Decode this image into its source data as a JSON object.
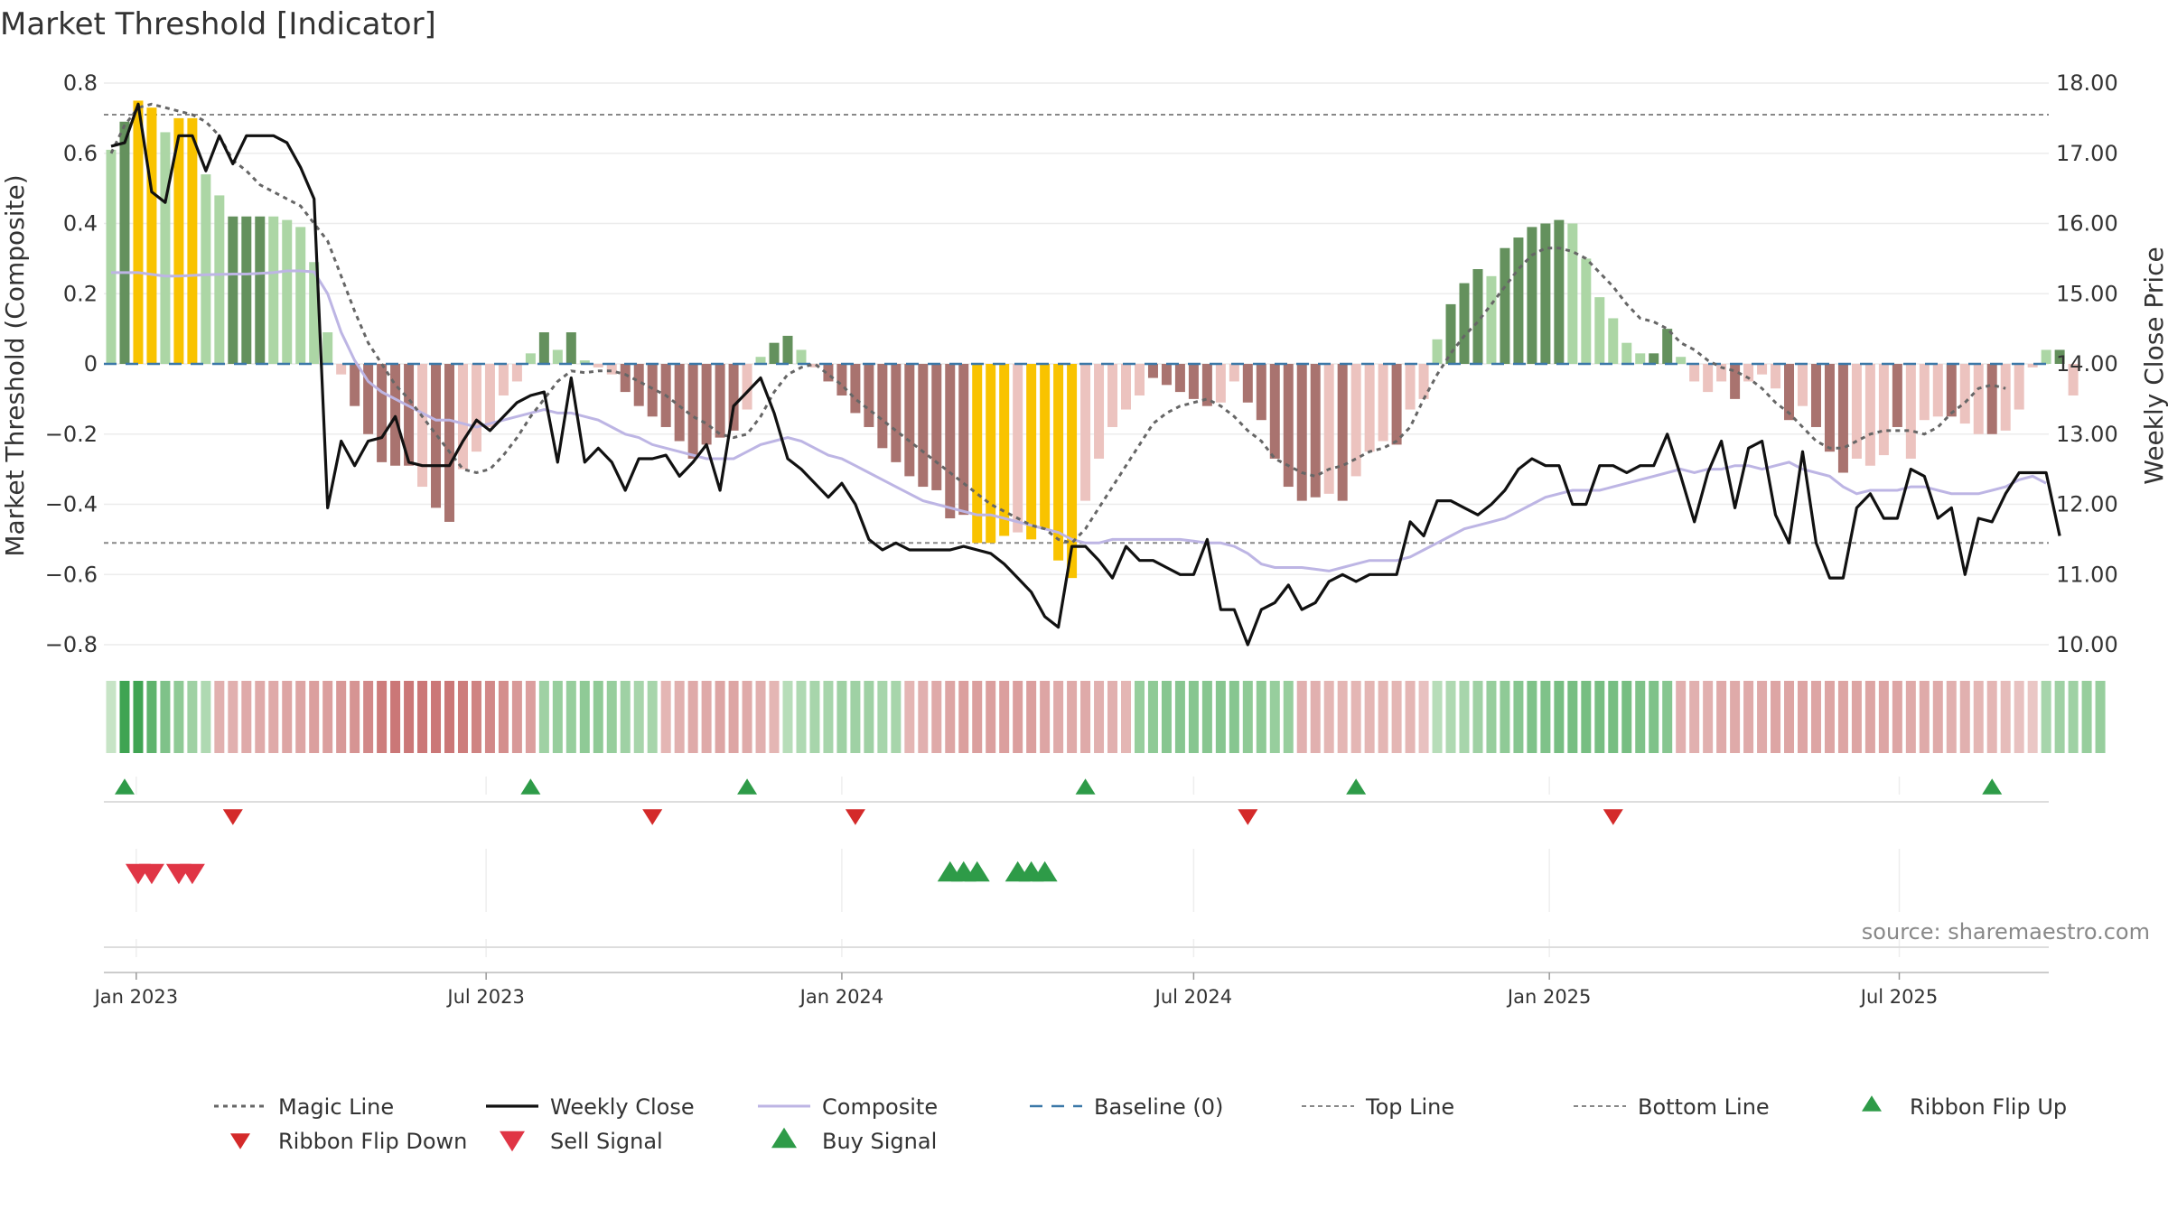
{
  "chart_data": {
    "type": "bar",
    "title": "Market Threshold [Indicator]",
    "source": "source: sharemaestro.com",
    "ylabel_left": "Market Threshold (Composite)",
    "ylabel_right": "Weekly Close Price",
    "ylim_left": [
      -0.8,
      0.8
    ],
    "ylim_right": [
      10.0,
      18.0
    ],
    "yticks_left": [
      "0.8",
      "0.6",
      "0.4",
      "0.2",
      "0",
      "−0.2",
      "−0.4",
      "−0.6",
      "−0.8"
    ],
    "yticks_right": [
      "18.00",
      "17.00",
      "16.00",
      "15.00",
      "14.00",
      "13.00",
      "12.00",
      "11.00",
      "10.00"
    ],
    "x_ticks": [
      "Jan 2023",
      "Jul 2023",
      "Jan 2024",
      "Jul 2024",
      "Jan 2025",
      "Jul 2025"
    ],
    "x_start": "2022-12-19",
    "x_step_days": 7,
    "top_line": 0.71,
    "bottom_line": -0.51,
    "baseline": 0,
    "colors": {
      "pos_light": "#acd6a5",
      "pos_dark": "#64915d",
      "neg_light": "#ecc3bf",
      "neg_dark": "#a9736f",
      "extreme": "#f9c300",
      "magic": "#666666",
      "close": "#111111",
      "composite": "#bdb5e4",
      "baseline": "#3b78a8",
      "threshold_lines": "#888888",
      "ribbon_up": "#2e9b48",
      "ribbon_down": "#d42a2a",
      "sell": "#e03545",
      "buy": "#2e9b48"
    },
    "bars": [
      0.61,
      0.69,
      0.75,
      0.73,
      0.66,
      0.7,
      0.7,
      0.54,
      0.48,
      0.42,
      0.42,
      0.42,
      0.42,
      0.41,
      0.39,
      0.29,
      0.09,
      -0.03,
      -0.12,
      -0.2,
      -0.28,
      -0.29,
      -0.29,
      -0.35,
      -0.41,
      -0.45,
      -0.3,
      -0.25,
      -0.18,
      -0.09,
      -0.05,
      0.03,
      0.09,
      0.04,
      0.09,
      0.01,
      -0.01,
      -0.03,
      -0.08,
      -0.12,
      -0.15,
      -0.18,
      -0.22,
      -0.27,
      -0.23,
      -0.21,
      -0.19,
      -0.13,
      0.02,
      0.06,
      0.08,
      0.04,
      -0.01,
      -0.05,
      -0.09,
      -0.14,
      -0.18,
      -0.24,
      -0.28,
      -0.32,
      -0.35,
      -0.36,
      -0.44,
      -0.43,
      -0.51,
      -0.51,
      -0.49,
      -0.48,
      -0.5,
      -0.47,
      -0.56,
      -0.61,
      -0.39,
      -0.27,
      -0.18,
      -0.13,
      -0.09,
      -0.04,
      -0.06,
      -0.08,
      -0.1,
      -0.12,
      -0.11,
      -0.05,
      -0.11,
      -0.16,
      -0.27,
      -0.35,
      -0.39,
      -0.38,
      -0.37,
      -0.39,
      -0.32,
      -0.25,
      -0.22,
      -0.23,
      -0.13,
      -0.1,
      0.07,
      0.17,
      0.23,
      0.27,
      0.25,
      0.33,
      0.36,
      0.39,
      0.4,
      0.41,
      0.4,
      0.3,
      0.19,
      0.13,
      0.06,
      0.03,
      0.03,
      0.1,
      0.02,
      -0.05,
      -0.08,
      -0.05,
      -0.1,
      -0.05,
      -0.03,
      -0.07,
      -0.16,
      -0.12,
      -0.18,
      -0.25,
      -0.31,
      -0.27,
      -0.29,
      -0.26,
      -0.18,
      -0.27,
      -0.16,
      -0.15,
      -0.15,
      -0.17,
      -0.2,
      -0.2,
      -0.19,
      -0.13,
      -0.01,
      0.04,
      0.04,
      -0.09
    ],
    "bar_tones": [
      "pl",
      "pd",
      "ex",
      "ex",
      "pl",
      "ex",
      "ex",
      "pl",
      "pl",
      "pd",
      "pd",
      "pd",
      "pl",
      "pl",
      "pl",
      "pl",
      "pl",
      "nl",
      "nd",
      "nd",
      "nd",
      "nd",
      "nd",
      "nl",
      "nd",
      "nd",
      "nl",
      "nl",
      "nl",
      "nl",
      "nl",
      "pl",
      "pd",
      "pl",
      "pd",
      "pl",
      "nl",
      "nl",
      "nd",
      "nd",
      "nd",
      "nd",
      "nd",
      "nd",
      "nd",
      "nd",
      "nd",
      "nl",
      "pl",
      "pd",
      "pd",
      "pl",
      "nl",
      "nd",
      "nd",
      "nd",
      "nd",
      "nd",
      "nd",
      "nd",
      "nd",
      "nd",
      "nd",
      "nd",
      "ex",
      "ex",
      "ex",
      "nl",
      "ex",
      "ex",
      "ex",
      "ex",
      "nl",
      "nl",
      "nl",
      "nl",
      "nl",
      "nd",
      "nd",
      "nd",
      "nd",
      "nd",
      "nl",
      "nl",
      "nd",
      "nd",
      "nd",
      "nd",
      "nd",
      "nd",
      "nl",
      "nd",
      "nl",
      "nl",
      "nl",
      "nd",
      "nl",
      "nl",
      "pl",
      "pd",
      "pd",
      "pd",
      "pl",
      "pd",
      "pd",
      "pd",
      "pd",
      "pd",
      "pl",
      "pl",
      "pl",
      "pl",
      "pl",
      "pl",
      "pd",
      "pd",
      "pl",
      "nl",
      "nl",
      "nl",
      "nd",
      "nl",
      "nl",
      "nl",
      "nd",
      "nl",
      "nd",
      "nd",
      "nd",
      "nl",
      "nl",
      "nl",
      "nd",
      "nl",
      "nl",
      "nl",
      "nd",
      "nl",
      "nl",
      "nd",
      "nl",
      "nl",
      "nl",
      "pl",
      "pd",
      "nl"
    ],
    "weekly_close": [
      17.1,
      17.15,
      17.7,
      16.45,
      16.3,
      17.25,
      17.25,
      16.75,
      17.25,
      16.85,
      17.25,
      17.25,
      17.25,
      17.15,
      16.8,
      16.35,
      11.95,
      12.9,
      12.55,
      12.9,
      12.95,
      13.25,
      12.6,
      12.55,
      12.55,
      12.55,
      12.9,
      13.2,
      13.05,
      13.25,
      13.45,
      13.55,
      13.6,
      12.6,
      13.8,
      12.6,
      12.8,
      12.6,
      12.2,
      12.65,
      12.65,
      12.7,
      12.4,
      12.6,
      12.85,
      12.2,
      13.4,
      13.6,
      13.8,
      13.3,
      12.65,
      12.5,
      12.3,
      12.1,
      12.3,
      12.0,
      11.5,
      11.35,
      11.45,
      11.35,
      11.35,
      11.35,
      11.35,
      11.4,
      11.35,
      11.3,
      11.15,
      10.95,
      10.75,
      10.4,
      10.25,
      11.4,
      11.4,
      11.2,
      10.95,
      11.4,
      11.2,
      11.2,
      11.1,
      11.0,
      11.0,
      11.5,
      10.5,
      10.5,
      10.0,
      10.5,
      10.6,
      10.85,
      10.5,
      10.6,
      10.9,
      11.0,
      10.9,
      11.0,
      11.0,
      11.0,
      11.75,
      11.55,
      12.05,
      12.05,
      11.95,
      11.85,
      12.0,
      12.2,
      12.5,
      12.65,
      12.55,
      12.55,
      12.0,
      12.0,
      12.55,
      12.55,
      12.45,
      12.55,
      12.55,
      13.0,
      12.4,
      11.75,
      12.45,
      12.9,
      11.95,
      12.8,
      12.9,
      11.85,
      11.45,
      12.75,
      11.45,
      10.95,
      10.95,
      11.95,
      12.15,
      11.8,
      11.8,
      12.5,
      12.4,
      11.8,
      11.95,
      11.0,
      11.8,
      11.75,
      12.15,
      12.45,
      12.45,
      12.45,
      11.55
    ],
    "composite": [
      0.26,
      0.26,
      0.26,
      0.255,
      0.25,
      0.25,
      0.252,
      0.254,
      0.255,
      0.256,
      0.256,
      0.258,
      0.26,
      0.265,
      0.265,
      0.262,
      0.2,
      0.09,
      0.01,
      -0.05,
      -0.08,
      -0.1,
      -0.12,
      -0.14,
      -0.16,
      -0.16,
      -0.17,
      -0.18,
      -0.17,
      -0.16,
      -0.15,
      -0.14,
      -0.13,
      -0.14,
      -0.14,
      -0.15,
      -0.16,
      -0.18,
      -0.2,
      -0.21,
      -0.23,
      -0.24,
      -0.25,
      -0.26,
      -0.27,
      -0.27,
      -0.27,
      -0.25,
      -0.23,
      -0.22,
      -0.21,
      -0.22,
      -0.24,
      -0.26,
      -0.27,
      -0.29,
      -0.31,
      -0.33,
      -0.35,
      -0.37,
      -0.39,
      -0.4,
      -0.41,
      -0.42,
      -0.43,
      -0.43,
      -0.44,
      -0.45,
      -0.46,
      -0.47,
      -0.48,
      -0.5,
      -0.51,
      -0.51,
      -0.5,
      -0.5,
      -0.5,
      -0.5,
      -0.5,
      -0.5,
      -0.505,
      -0.51,
      -0.51,
      -0.52,
      -0.54,
      -0.57,
      -0.58,
      -0.58,
      -0.58,
      -0.585,
      -0.59,
      -0.58,
      -0.57,
      -0.56,
      -0.56,
      -0.56,
      -0.55,
      -0.53,
      -0.51,
      -0.49,
      -0.47,
      -0.46,
      -0.45,
      -0.44,
      -0.42,
      -0.4,
      -0.38,
      -0.37,
      -0.36,
      -0.36,
      -0.36,
      -0.35,
      -0.34,
      -0.33,
      -0.32,
      -0.31,
      -0.3,
      -0.31,
      -0.3,
      -0.3,
      -0.29,
      -0.29,
      -0.3,
      -0.29,
      -0.28,
      -0.3,
      -0.31,
      -0.32,
      -0.35,
      -0.37,
      -0.36,
      -0.36,
      -0.36,
      -0.35,
      -0.35,
      -0.36,
      -0.37,
      -0.37,
      -0.37,
      -0.36,
      -0.35,
      -0.33,
      -0.32,
      -0.34
    ],
    "magic_line": [
      0.6,
      0.68,
      0.73,
      0.74,
      0.73,
      0.72,
      0.71,
      0.69,
      0.65,
      0.58,
      0.55,
      0.51,
      0.49,
      0.47,
      0.45,
      0.4,
      0.35,
      0.25,
      0.15,
      0.06,
      0.0,
      -0.06,
      -0.1,
      -0.15,
      -0.2,
      -0.25,
      -0.3,
      -0.31,
      -0.3,
      -0.26,
      -0.21,
      -0.15,
      -0.1,
      -0.05,
      -0.02,
      -0.025,
      -0.02,
      -0.02,
      -0.03,
      -0.05,
      -0.07,
      -0.09,
      -0.12,
      -0.15,
      -0.17,
      -0.2,
      -0.21,
      -0.2,
      -0.15,
      -0.08,
      -0.03,
      -0.01,
      0.0,
      -0.03,
      -0.06,
      -0.1,
      -0.13,
      -0.16,
      -0.19,
      -0.22,
      -0.25,
      -0.28,
      -0.31,
      -0.34,
      -0.37,
      -0.4,
      -0.42,
      -0.44,
      -0.46,
      -0.47,
      -0.5,
      -0.51,
      -0.47,
      -0.41,
      -0.35,
      -0.29,
      -0.23,
      -0.17,
      -0.14,
      -0.12,
      -0.11,
      -0.1,
      -0.12,
      -0.15,
      -0.19,
      -0.22,
      -0.27,
      -0.29,
      -0.31,
      -0.32,
      -0.3,
      -0.29,
      -0.27,
      -0.25,
      -0.24,
      -0.22,
      -0.18,
      -0.1,
      -0.03,
      0.03,
      0.08,
      0.12,
      0.17,
      0.22,
      0.27,
      0.31,
      0.33,
      0.33,
      0.32,
      0.3,
      0.26,
      0.22,
      0.17,
      0.13,
      0.12,
      0.1,
      0.06,
      0.04,
      0.01,
      -0.01,
      -0.02,
      -0.04,
      -0.07,
      -0.11,
      -0.14,
      -0.18,
      -0.22,
      -0.24,
      -0.24,
      -0.22,
      -0.2,
      -0.19,
      -0.19,
      -0.19,
      -0.2,
      -0.18,
      -0.14,
      -0.11,
      -0.07,
      -0.06,
      -0.07
    ],
    "ribbon": [
      0.1,
      0.95,
      0.95,
      0.75,
      0.55,
      0.45,
      0.35,
      0.25,
      -0.35,
      -0.35,
      -0.4,
      -0.4,
      -0.4,
      -0.45,
      -0.45,
      -0.5,
      -0.5,
      -0.55,
      -0.6,
      -0.7,
      -0.8,
      -0.85,
      -0.85,
      -0.85,
      -0.85,
      -0.85,
      -0.8,
      -0.75,
      -0.7,
      -0.65,
      -0.55,
      -0.5,
      0.35,
      0.4,
      0.4,
      0.45,
      0.45,
      0.4,
      0.35,
      0.3,
      0.3,
      -0.3,
      -0.35,
      -0.4,
      -0.4,
      -0.45,
      -0.45,
      -0.4,
      -0.35,
      -0.3,
      0.2,
      0.25,
      0.3,
      0.3,
      0.35,
      0.35,
      0.35,
      0.3,
      0.3,
      -0.3,
      -0.35,
      -0.4,
      -0.45,
      -0.5,
      -0.5,
      -0.5,
      -0.5,
      -0.5,
      -0.5,
      -0.45,
      -0.4,
      -0.4,
      -0.4,
      -0.35,
      -0.35,
      -0.3,
      0.4,
      0.45,
      0.5,
      0.5,
      0.5,
      0.5,
      0.5,
      0.5,
      0.45,
      0.45,
      0.4,
      0.4,
      -0.35,
      -0.35,
      -0.3,
      -0.3,
      -0.3,
      -0.3,
      -0.3,
      -0.3,
      -0.3,
      -0.2,
      0.2,
      0.25,
      0.3,
      0.35,
      0.4,
      0.45,
      0.5,
      0.55,
      0.55,
      0.6,
      0.6,
      0.6,
      0.6,
      0.6,
      0.6,
      0.55,
      0.55,
      0.5,
      -0.35,
      -0.35,
      -0.35,
      -0.4,
      -0.4,
      -0.4,
      -0.4,
      -0.45,
      -0.45,
      -0.45,
      -0.45,
      -0.45,
      -0.45,
      -0.45,
      -0.45,
      -0.45,
      -0.45,
      -0.4,
      -0.4,
      -0.4,
      -0.35,
      -0.35,
      -0.3,
      -0.3,
      -0.25,
      -0.2,
      -0.15,
      0.3,
      0.35,
      0.35,
      0.4,
      0.4
    ],
    "ribbon_flip_up": [
      1,
      31,
      47,
      72,
      92,
      139
    ],
    "ribbon_flip_down": [
      9,
      40,
      55,
      84,
      111
    ],
    "sell_signals": [
      2,
      3,
      5,
      6
    ],
    "buy_signals": [
      62,
      63,
      64,
      67,
      68,
      69
    ],
    "legend": [
      "Magic Line",
      "Weekly Close",
      "Composite",
      "Baseline (0)",
      "Top Line",
      "Bottom Line",
      "Ribbon Flip Up",
      "Ribbon Flip Down",
      "Sell Signal",
      "Buy Signal"
    ]
  }
}
